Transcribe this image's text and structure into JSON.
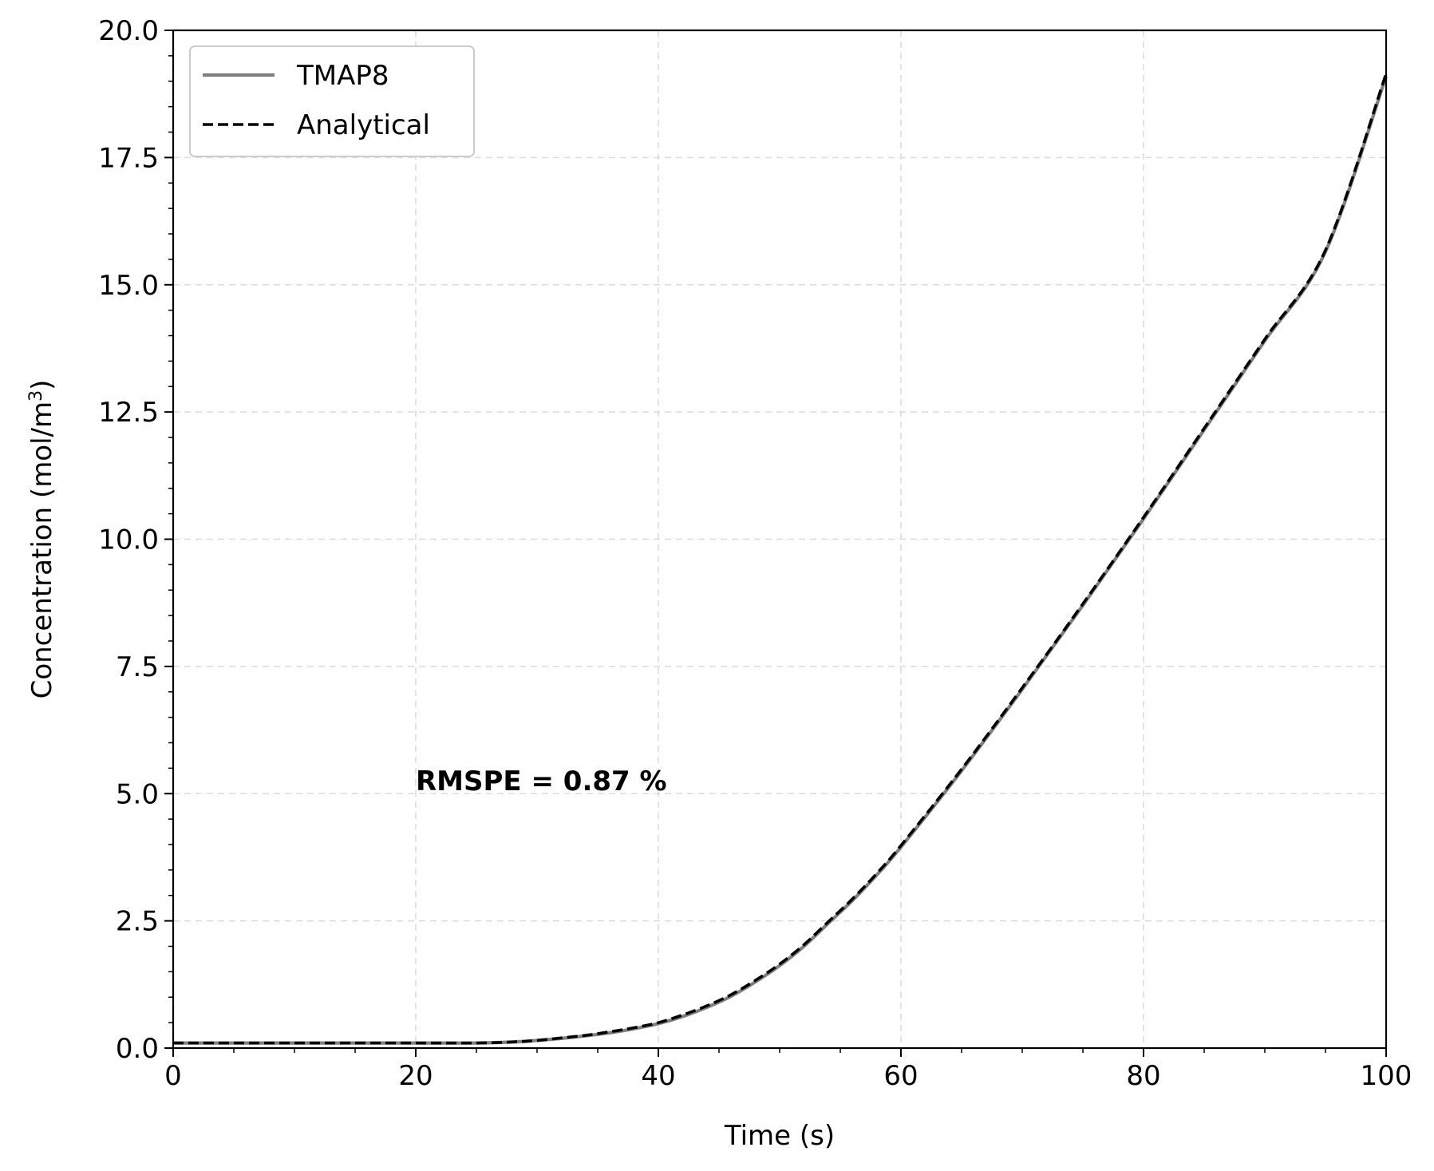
{
  "chart_data": {
    "type": "line",
    "title": "",
    "xlabel": "Time (s)",
    "ylabel": "Concentration (mol/m",
    "ylabel_sup": "3",
    "ylabel_tail": ")",
    "xlim": [
      0,
      100
    ],
    "ylim": [
      0,
      20
    ],
    "x_ticks": [
      "0",
      "20",
      "40",
      "60",
      "80",
      "100"
    ],
    "y_ticks": [
      "0.0",
      "2.5",
      "5.0",
      "7.5",
      "10.0",
      "12.5",
      "15.0",
      "17.5",
      "20.0"
    ],
    "grid": true,
    "legend_position": "top-left",
    "annotation": {
      "text": "RMSPE = 0.87 %",
      "x": 20,
      "y": 5.1
    },
    "series": [
      {
        "name": "TMAP8",
        "color": "#808080",
        "style": "solid",
        "x": [
          0,
          10,
          20,
          25,
          28,
          30,
          32,
          34,
          36,
          38,
          40,
          42,
          44,
          46,
          48,
          50,
          52,
          54,
          56,
          58,
          60,
          65,
          70,
          75,
          80,
          85,
          90,
          95,
          100
        ],
        "y": [
          0.1,
          0.1,
          0.1,
          0.1,
          0.12,
          0.15,
          0.19,
          0.24,
          0.3,
          0.38,
          0.48,
          0.62,
          0.8,
          1.02,
          1.3,
          1.62,
          2.0,
          2.45,
          2.9,
          3.4,
          3.95,
          5.45,
          7.05,
          8.7,
          10.4,
          12.15,
          13.9,
          15.65,
          19.1
        ]
      },
      {
        "name": "Analytical",
        "color": "#000000",
        "style": "dashed",
        "x": [
          0,
          10,
          20,
          25,
          28,
          30,
          32,
          34,
          36,
          38,
          40,
          42,
          44,
          46,
          48,
          50,
          52,
          54,
          56,
          58,
          60,
          65,
          70,
          75,
          80,
          85,
          90,
          95,
          100
        ],
        "y": [
          0.1,
          0.1,
          0.1,
          0.1,
          0.12,
          0.15,
          0.2,
          0.25,
          0.32,
          0.4,
          0.5,
          0.65,
          0.83,
          1.05,
          1.33,
          1.65,
          2.03,
          2.48,
          2.93,
          3.43,
          3.98,
          5.48,
          7.08,
          8.73,
          10.43,
          12.18,
          13.93,
          15.68,
          19.15
        ]
      }
    ]
  }
}
